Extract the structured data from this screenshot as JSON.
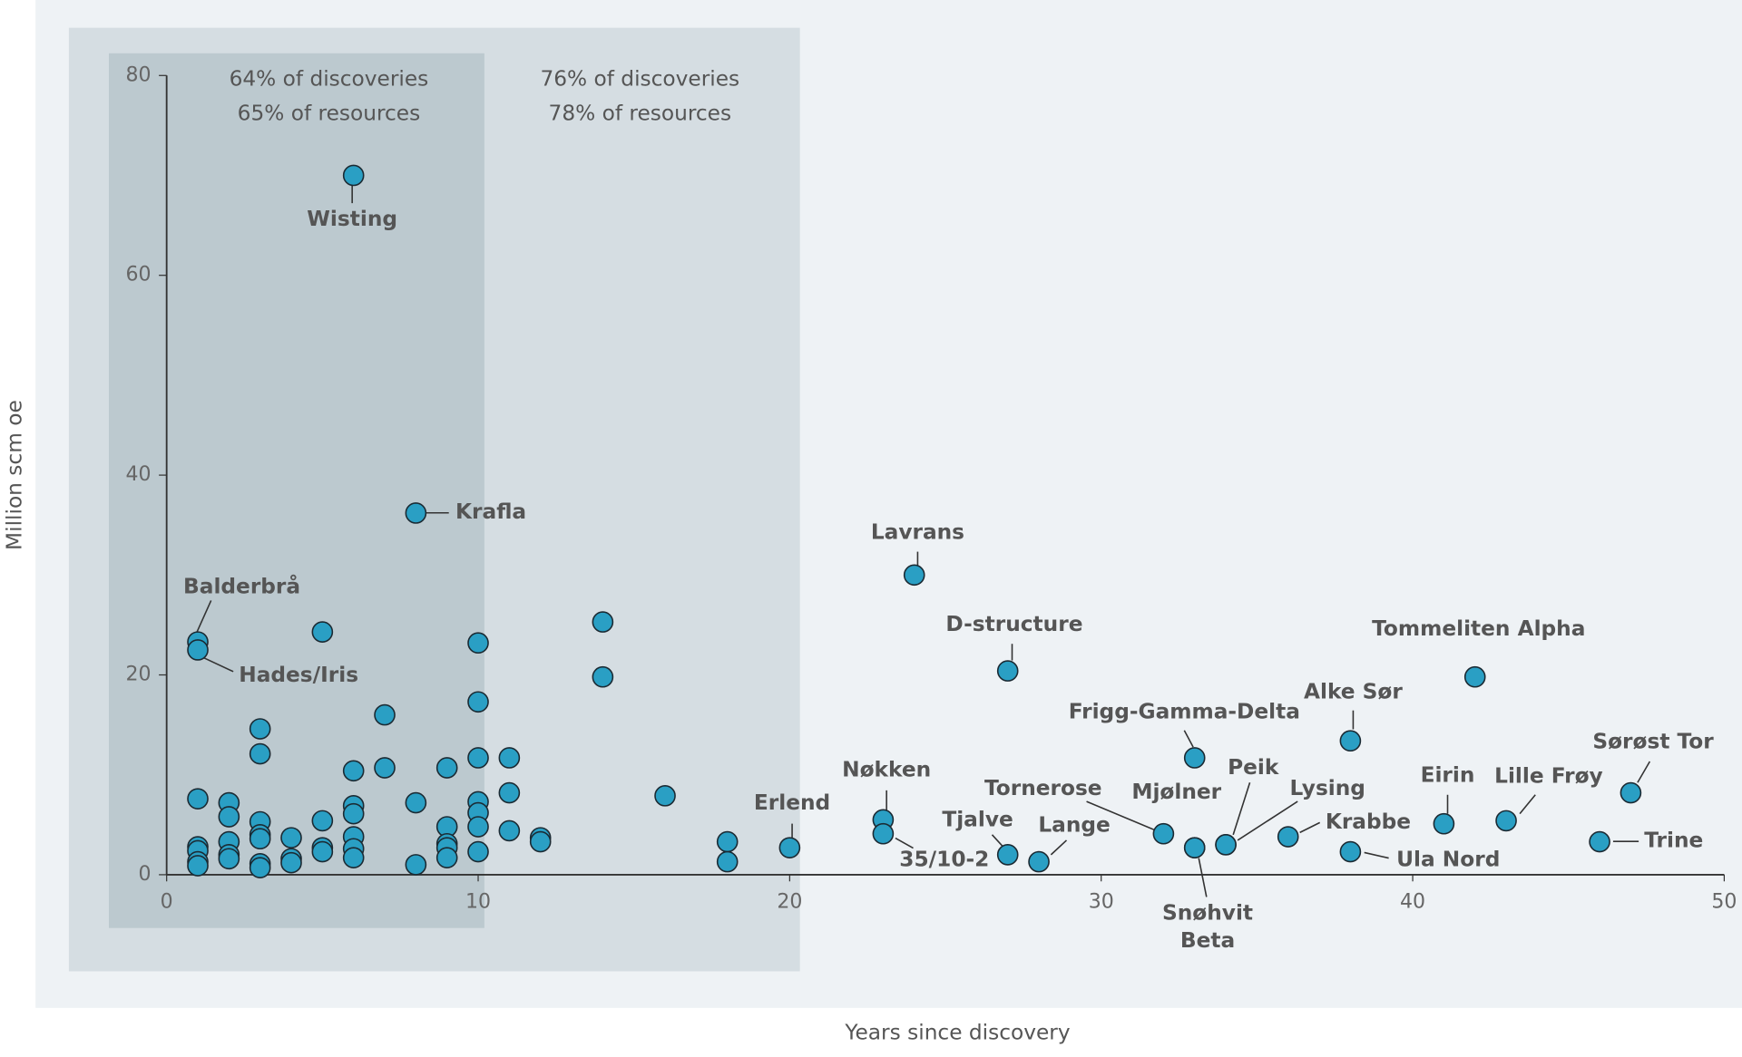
{
  "chart_data": {
    "type": "scatter",
    "xlabel": "Years since discovery",
    "ylabel": "Million scm oe",
    "xlim": [
      0,
      50
    ],
    "ylim": [
      0,
      80
    ],
    "xticks": [
      0,
      10,
      20,
      30,
      40,
      50
    ],
    "yticks": [
      0,
      20,
      40,
      60,
      80
    ],
    "color": "#2a9fc4",
    "annotations": [
      "64% of discoveries",
      "65% of resources",
      "76% of discoveries",
      "78% of resources"
    ],
    "x": [
      6,
      8,
      1,
      1,
      24,
      27,
      42,
      38,
      33,
      47,
      23,
      23,
      20,
      27,
      28,
      32,
      33,
      33,
      34,
      34,
      36,
      38,
      41,
      43,
      46,
      1,
      1,
      1,
      1,
      1,
      2,
      2,
      2,
      2,
      2,
      3,
      3,
      3,
      3,
      3,
      3,
      3,
      4,
      4,
      4,
      5,
      5,
      5,
      5,
      6,
      6,
      6,
      6,
      6,
      6,
      7,
      7,
      8,
      8,
      9,
      9,
      9,
      9,
      9,
      10,
      10,
      10,
      10,
      10,
      10,
      10,
      11,
      11,
      11,
      12,
      12,
      14,
      14,
      16,
      18,
      18
    ],
    "y": [
      70,
      36.2,
      23.3,
      22.5,
      30,
      20.4,
      19.8,
      13.4,
      11.7,
      8.2,
      5.5,
      4.1,
      2.7,
      2,
      1.3,
      4.1,
      2.7,
      2.7,
      3,
      3,
      3.8,
      2.3,
      5.1,
      5.4,
      3.3,
      7.6,
      2.8,
      2.4,
      1.3,
      0.9,
      7.2,
      5.8,
      3.3,
      2,
      1.6,
      14.6,
      12.1,
      5.3,
      4,
      3.6,
      1.1,
      0.7,
      3.7,
      1.6,
      1.2,
      24.3,
      5.4,
      2.7,
      2.3,
      10.4,
      6.9,
      6.1,
      3.8,
      2.6,
      1.7,
      16,
      10.7,
      7.2,
      1,
      10.7,
      4.8,
      3.1,
      2.7,
      1.7,
      23.2,
      17.3,
      11.7,
      7.3,
      6.2,
      4.8,
      2.3,
      11.7,
      8.2,
      4.4,
      3.7,
      3.3,
      25.3,
      19.8,
      7.9,
      3.3,
      1.3
    ],
    "labels": [
      "Wisting",
      "Krafla",
      "Balderbrå",
      "Hades/Iris",
      "Lavrans",
      "D-structure",
      "Tommeliten Alpha",
      "Alke Sør",
      "Frigg-Gamma-Delta",
      "Sørøst Tor",
      "Nøkken",
      "35/10-2",
      "Erlend",
      "Tjalve",
      "Lange",
      "Tornerose",
      "Mjølner",
      [
        "Snøhvit",
        "Beta"
      ],
      "Peik",
      "Lysing",
      "Krabbe",
      "Ula Nord",
      "Eirin",
      "Lille Frøy",
      "Trine"
    ]
  }
}
